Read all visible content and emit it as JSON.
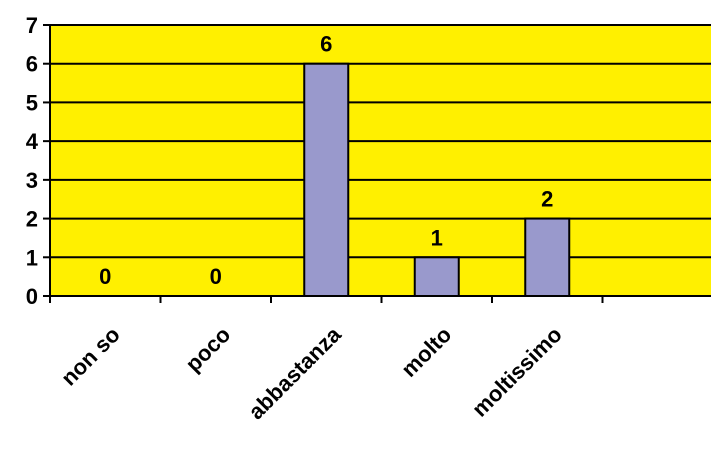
{
  "chart_data": {
    "type": "bar",
    "title": "",
    "xlabel": "",
    "ylabel": "",
    "categories": [
      "non so",
      "poco",
      "abbastanza",
      "molto",
      "moltissimo",
      ""
    ],
    "values": [
      0,
      0,
      6,
      1,
      2,
      null
    ],
    "ylim": [
      0,
      7
    ],
    "yticks": [
      0,
      1,
      2,
      3,
      4,
      5,
      6,
      7
    ],
    "grid": true,
    "legend": "none",
    "data_labels": true,
    "colors": {
      "plot_background": "#FFF000",
      "bar_fill": "#9999CC",
      "bar_stroke": "#000000",
      "gridline": "#000000"
    }
  }
}
